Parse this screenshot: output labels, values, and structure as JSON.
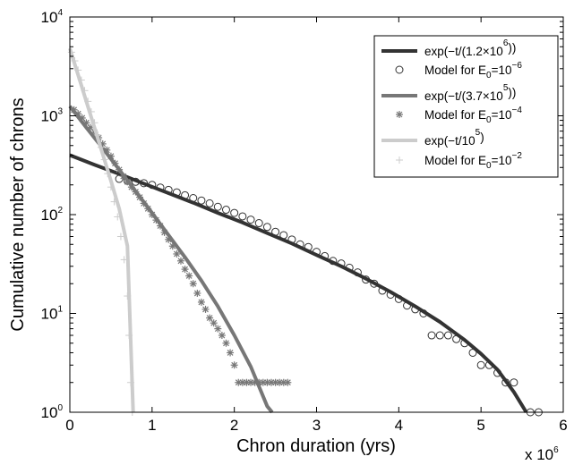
{
  "chart_data": {
    "type": "line",
    "xlabel": "Chron duration (yrs)",
    "ylabel": "Cumulative number of chrons",
    "x_multiplier_text": "x 10",
    "x_multiplier_exp": "6",
    "xlim": [
      0,
      6000000
    ],
    "ylim": [
      1,
      10000
    ],
    "yscale": "log",
    "x_ticks": [
      {
        "value": 0,
        "label": "0"
      },
      {
        "value": 1000000,
        "label": "1"
      },
      {
        "value": 2000000,
        "label": "2"
      },
      {
        "value": 3000000,
        "label": "3"
      },
      {
        "value": 4000000,
        "label": "4"
      },
      {
        "value": 5000000,
        "label": "5"
      },
      {
        "value": 6000000,
        "label": "6"
      }
    ],
    "y_ticks": [
      {
        "value": 1,
        "base": "10",
        "exp": "0"
      },
      {
        "value": 10,
        "base": "10",
        "exp": "1"
      },
      {
        "value": 100,
        "base": "10",
        "exp": "2"
      },
      {
        "value": 1000,
        "base": "10",
        "exp": "3"
      },
      {
        "value": 10000,
        "base": "10",
        "exp": "4"
      }
    ],
    "grid": false,
    "legend_position": "top-right",
    "legend": [
      {
        "kind": "line",
        "color": "#333333",
        "text": "exp(−t/(1.2×10",
        "sup": "6",
        "tail": "))"
      },
      {
        "kind": "circle",
        "color": "#333333",
        "text": "Model for E",
        "sub": "0",
        "tail": "=10",
        "sup": "−6"
      },
      {
        "kind": "line",
        "color": "#777777",
        "text": "exp(−t/(3.7×10",
        "sup": "5",
        "tail": "))"
      },
      {
        "kind": "star",
        "color": "#777777",
        "text": "Model for E",
        "sub": "0",
        "tail": "=10",
        "sup": "−4"
      },
      {
        "kind": "line",
        "color": "#cccccc",
        "text": "exp(−t/10",
        "sup": "5",
        "tail": ")"
      },
      {
        "kind": "plus",
        "color": "#cccccc",
        "text": "Model for E",
        "sub": "0",
        "tail": "=10",
        "sup": "−2"
      }
    ],
    "series": [
      {
        "kind": "line",
        "color": "#333333",
        "x": [
          0,
          300000,
          600000,
          900000,
          1200000,
          1500000,
          1800000,
          2100000,
          2400000,
          2700000,
          3000000,
          3300000,
          3600000,
          3900000,
          4200000,
          4500000,
          4800000,
          5000000,
          5200000,
          5400000,
          5550000
        ],
        "y": [
          400,
          320,
          258,
          206,
          165,
          132,
          104,
          83,
          65,
          51,
          39,
          30,
          22.5,
          16.5,
          11.8,
          8.2,
          5.4,
          3.9,
          2.7,
          1.6,
          1.0
        ]
      },
      {
        "kind": "circle",
        "color": "#333333",
        "x": [
          600000,
          700000,
          800000,
          900000,
          1000000,
          1100000,
          1200000,
          1300000,
          1400000,
          1500000,
          1600000,
          1700000,
          1800000,
          1900000,
          2000000,
          2100000,
          2200000,
          2300000,
          2400000,
          2500000,
          2600000,
          2700000,
          2800000,
          2900000,
          3000000,
          3100000,
          3200000,
          3300000,
          3400000,
          3500000,
          3600000,
          3700000,
          3800000,
          3900000,
          4000000,
          4100000,
          4200000,
          4300000,
          4400000,
          4500000,
          4600000,
          4700000,
          4800000,
          4900000,
          5000000,
          5100000,
          5200000,
          5300000,
          5400000,
          5600000,
          5700000
        ],
        "y": [
          230,
          220,
          215,
          208,
          200,
          188,
          178,
          168,
          157,
          147,
          139,
          130,
          120,
          112,
          104,
          96,
          89,
          82,
          75,
          67,
          62,
          56,
          50,
          47,
          42,
          38,
          34,
          32,
          29,
          26,
          22,
          20,
          17,
          15.5,
          14,
          12,
          11,
          10,
          6,
          6,
          6,
          5.5,
          5,
          4,
          3,
          3,
          2.5,
          2,
          2,
          1,
          1
        ]
      },
      {
        "kind": "line",
        "color": "#777777",
        "x": [
          0,
          200000,
          400000,
          600000,
          800000,
          1000000,
          1200000,
          1400000,
          1600000,
          1800000,
          2000000,
          2200000,
          2400000,
          2460000
        ],
        "y": [
          1250,
          760,
          470,
          285,
          172,
          104,
          62,
          37,
          21.5,
          11.8,
          6.0,
          2.9,
          1.15,
          1.0
        ]
      },
      {
        "kind": "star",
        "color": "#777777",
        "x": [
          50000,
          100000,
          150000,
          200000,
          250000,
          300000,
          350000,
          400000,
          450000,
          500000,
          550000,
          600000,
          650000,
          700000,
          750000,
          800000,
          850000,
          900000,
          950000,
          1000000,
          1050000,
          1100000,
          1150000,
          1200000,
          1250000,
          1300000,
          1350000,
          1400000,
          1450000,
          1500000,
          1550000,
          1600000,
          1650000,
          1700000,
          1750000,
          1800000,
          1850000,
          1900000,
          1950000,
          2000000,
          2050000,
          2100000,
          2150000,
          2200000,
          2250000,
          2300000,
          2350000,
          2400000,
          2450000,
          2500000,
          2550000,
          2600000,
          2650000
        ],
        "y": [
          1150,
          1050,
          950,
          850,
          760,
          680,
          600,
          520,
          450,
          390,
          330,
          285,
          245,
          215,
          190,
          170,
          150,
          130,
          115,
          100,
          88,
          77,
          66,
          56,
          48,
          40,
          34,
          28,
          24,
          20,
          16,
          13,
          11,
          9,
          8,
          7,
          6,
          5,
          4,
          3,
          2,
          2,
          2,
          2,
          2,
          2,
          2,
          2,
          2,
          2,
          2,
          2,
          2
        ]
      },
      {
        "kind": "line",
        "color": "#cccccc",
        "x": [
          0,
          100000,
          200000,
          300000,
          400000,
          500000,
          600000,
          700000,
          770000
        ],
        "y": [
          4800,
          2600,
          1400,
          760,
          410,
          220,
          115,
          48,
          1.0
        ]
      },
      {
        "kind": "plus",
        "color": "#cccccc",
        "x": [
          20000,
          60000,
          100000,
          140000,
          180000,
          220000,
          260000,
          300000,
          340000,
          380000,
          420000,
          460000,
          500000,
          540000,
          580000,
          620000,
          660000,
          700000,
          720000,
          740000,
          760000
        ],
        "y": [
          4400,
          3600,
          2900,
          2300,
          1800,
          1400,
          1100,
          850,
          640,
          480,
          360,
          260,
          190,
          135,
          95,
          60,
          35,
          15,
          6,
          2,
          1
        ]
      }
    ]
  }
}
